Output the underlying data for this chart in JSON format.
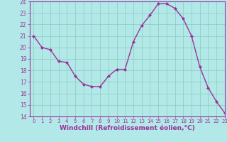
{
  "x": [
    0,
    1,
    2,
    3,
    4,
    5,
    6,
    7,
    8,
    9,
    10,
    11,
    12,
    13,
    14,
    15,
    16,
    17,
    18,
    19,
    20,
    21,
    22,
    23
  ],
  "y": [
    21.0,
    20.0,
    19.8,
    18.8,
    18.7,
    17.5,
    16.8,
    16.6,
    16.6,
    17.5,
    18.1,
    18.1,
    20.5,
    21.9,
    22.8,
    23.8,
    23.8,
    23.4,
    22.5,
    21.0,
    18.3,
    16.5,
    15.3,
    14.3
  ],
  "color": "#993399",
  "bg_color": "#b3e8e8",
  "grid_color": "#88ccbb",
  "xlabel": "Windchill (Refroidissement éolien,°C)",
  "ylim": [
    14,
    24
  ],
  "xlim": [
    -0.5,
    23
  ],
  "yticks": [
    14,
    15,
    16,
    17,
    18,
    19,
    20,
    21,
    22,
    23,
    24
  ],
  "xticks": [
    0,
    1,
    2,
    3,
    4,
    5,
    6,
    7,
    8,
    9,
    10,
    11,
    12,
    13,
    14,
    15,
    16,
    17,
    18,
    19,
    20,
    21,
    22,
    23
  ],
  "marker": "D",
  "markersize": 2.0,
  "linewidth": 1.0,
  "tick_fontsize": 5.5,
  "xlabel_fontsize": 6.5
}
